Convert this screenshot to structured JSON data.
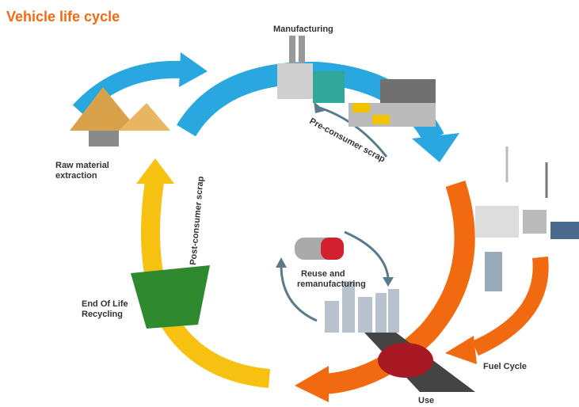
{
  "header": {
    "title": "Vehicle life cycle"
  },
  "nodes": [
    {
      "label": [
        "Manufacturing"
      ]
    },
    {
      "label": [
        "Pre-consumer scrap"
      ]
    },
    {
      "label": [
        "Raw material",
        "extraction"
      ]
    },
    {
      "label": [
        "Post-consumer scrap"
      ]
    },
    {
      "label": [
        "End Of Life",
        "Recycling"
      ]
    },
    {
      "label": [
        "Reuse and",
        "remanufacturing"
      ]
    },
    {
      "label": [
        "Fuel Cycle"
      ]
    },
    {
      "label": [
        "Use"
      ]
    }
  ]
}
